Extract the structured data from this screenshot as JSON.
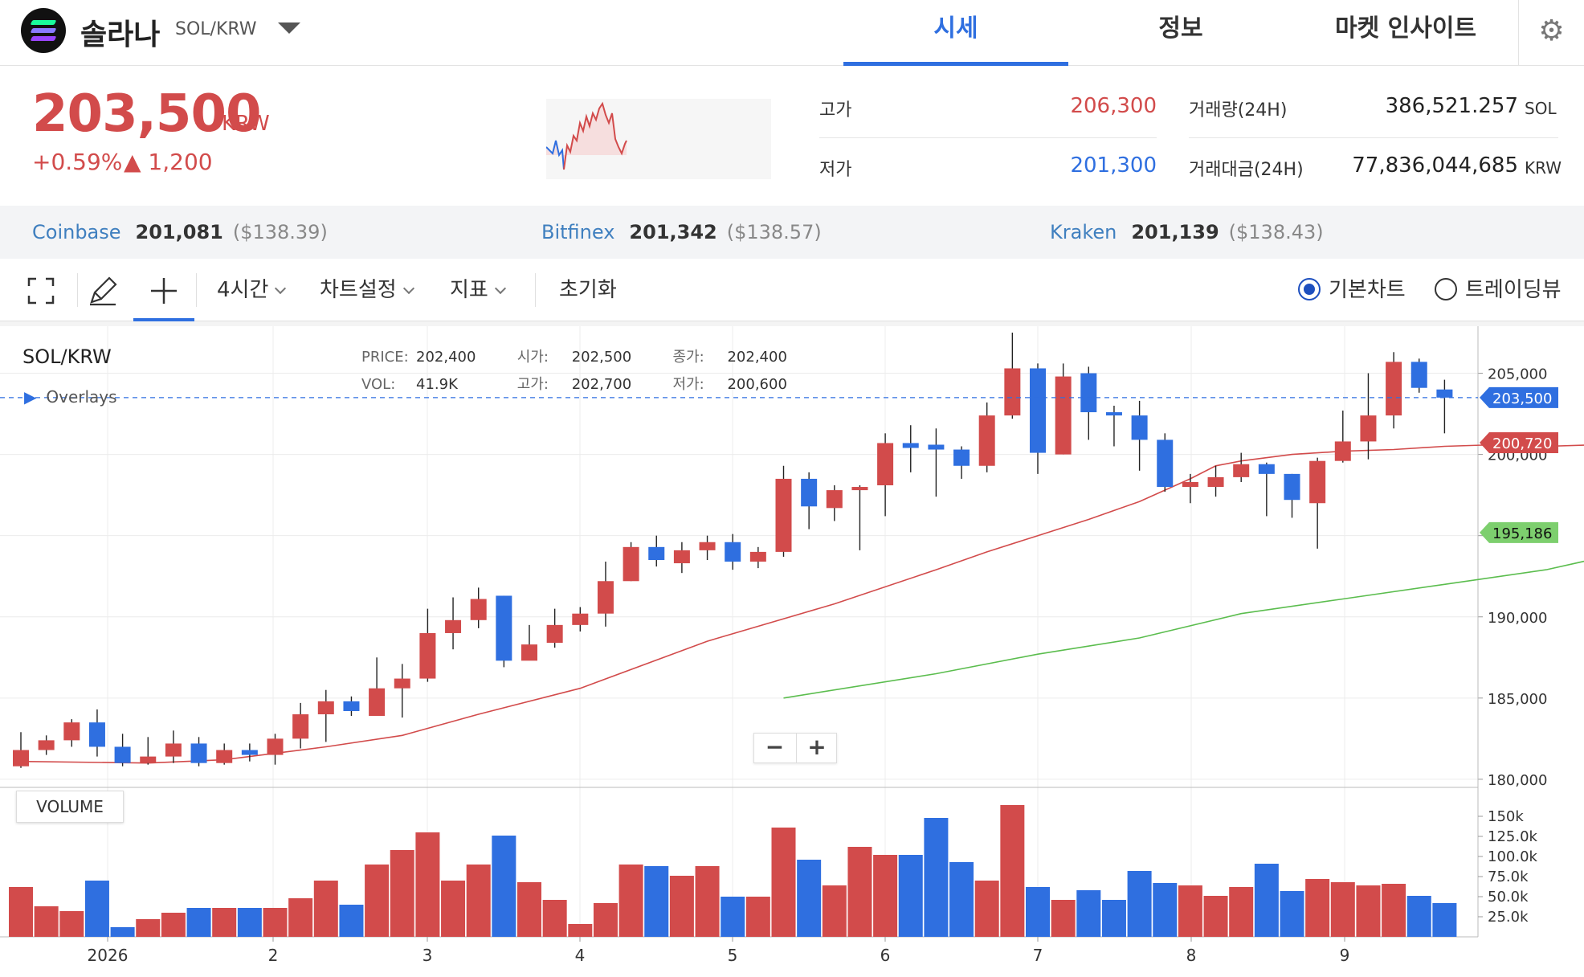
{
  "header": {
    "coin_name": "솔라나",
    "pair": "SOL/KRW",
    "tabs": [
      {
        "label": "시세"
      },
      {
        "label": "정보"
      },
      {
        "label": "마켓 인사이트"
      }
    ],
    "settings_icon": "gear-icon"
  },
  "summary": {
    "price": "203,500",
    "unit": "KRW",
    "change_rate": "+0.59%",
    "change_amount": "▲ 1,200",
    "high_label": "고가",
    "high": "206,300",
    "low_label": "저가",
    "low": "201,300",
    "volume_label": "거래량(24H)",
    "volume": "386,521.257",
    "volume_unit": "SOL",
    "amount_label": "거래대금(24H)",
    "amount": "77,836,044,685",
    "amount_unit": "KRW"
  },
  "exchanges": [
    {
      "name": "Coinbase",
      "price": "201,081",
      "usd": "($138.39)"
    },
    {
      "name": "Bitfinex",
      "price": "201,342",
      "usd": "($138.57)"
    },
    {
      "name": "Kraken",
      "price": "201,139",
      "usd": "($138.43)"
    }
  ],
  "toolbar": {
    "interval": "4시간",
    "chart_settings": "차트설정",
    "indicators": "지표",
    "reset": "초기화",
    "basic_chart": "기본차트",
    "tradingview": "트레이딩뷰",
    "basic_selected": true
  },
  "chart": {
    "title": "SOL/KRW",
    "overlays": "Overlays",
    "legend": {
      "price_label": "PRICE:",
      "price": "202,400",
      "open_label": "시가:",
      "open": "202,500",
      "close_label": "종가:",
      "close": "202,400",
      "vol_label": "VOL:",
      "vol": "41.9K",
      "high_label": "고가:",
      "high": "202,700",
      "low_label": "저가:",
      "low": "200,600"
    },
    "volume_label": "VOLUME"
  },
  "chart_data": {
    "type": "candlestick",
    "x_ticks": [
      "2026",
      "2",
      "3",
      "4",
      "5",
      "6",
      "7",
      "8",
      "9"
    ],
    "y_ticks": [
      {
        "v": 180000,
        "label": "180,000"
      },
      {
        "v": 185000,
        "label": "185,000"
      },
      {
        "v": 190000,
        "label": "190,000"
      },
      {
        "v": 195000,
        "label": "195,000"
      },
      {
        "v": 200000,
        "label": "200,000"
      },
      {
        "v": 205000,
        "label": "205,000"
      }
    ],
    "ylim": [
      179500,
      207500
    ],
    "current_price": {
      "value": 203500,
      "label": "203,500"
    },
    "ma_short_last": {
      "value": 200720,
      "label": "200,720"
    },
    "ma_long_last": {
      "value": 195186,
      "label": "195,186"
    },
    "vol_ticks": [
      {
        "v": 25000,
        "label": "25.0k"
      },
      {
        "v": 50000,
        "label": "50.0k"
      },
      {
        "v": 75000,
        "label": "75.0k"
      },
      {
        "v": 100000,
        "label": "100.0k"
      },
      {
        "v": 125000,
        "label": "125.0k"
      },
      {
        "v": 150000,
        "label": "150k"
      }
    ],
    "candles": [
      [
        180800,
        181800,
        182900,
        180700,
        62
      ],
      [
        181800,
        182400,
        182700,
        181500,
        38
      ],
      [
        182400,
        183500,
        183700,
        182000,
        32
      ],
      [
        183500,
        182000,
        184300,
        181400,
        70
      ],
      [
        182000,
        181000,
        182800,
        180800,
        12
      ],
      [
        181000,
        181400,
        182600,
        180900,
        22
      ],
      [
        181400,
        182200,
        183000,
        181000,
        30
      ],
      [
        182200,
        181000,
        182600,
        180800,
        36
      ],
      [
        181000,
        181800,
        182200,
        180900,
        36
      ],
      [
        181800,
        181500,
        182200,
        181100,
        36
      ],
      [
        181500,
        182500,
        182800,
        180900,
        36
      ],
      [
        182500,
        184000,
        184700,
        181900,
        48
      ],
      [
        184000,
        184800,
        185500,
        182300,
        70
      ],
      [
        184800,
        184200,
        185100,
        183900,
        40
      ],
      [
        183900,
        185600,
        187500,
        184000,
        90
      ],
      [
        185600,
        186200,
        187100,
        183800,
        108
      ],
      [
        186200,
        189000,
        190500,
        186000,
        130
      ],
      [
        189000,
        189800,
        191200,
        188000,
        70
      ],
      [
        189800,
        191100,
        191800,
        189300,
        90
      ],
      [
        191300,
        187300,
        191300,
        186900,
        126
      ],
      [
        187300,
        188300,
        189500,
        187600,
        68
      ],
      [
        188400,
        189500,
        190500,
        188100,
        46
      ],
      [
        189500,
        190200,
        190600,
        189100,
        16
      ],
      [
        190200,
        192200,
        193400,
        189400,
        42
      ],
      [
        192200,
        194300,
        194600,
        192200,
        90
      ],
      [
        194300,
        193500,
        195000,
        193100,
        88
      ],
      [
        193300,
        194100,
        194600,
        192700,
        76
      ],
      [
        194100,
        194600,
        195000,
        193500,
        88
      ],
      [
        194600,
        193400,
        195100,
        192900,
        50
      ],
      [
        193400,
        194000,
        194300,
        193000,
        50
      ],
      [
        194000,
        198500,
        199300,
        193700,
        136
      ],
      [
        198500,
        196800,
        198900,
        195400,
        96
      ],
      [
        196700,
        197800,
        198100,
        195900,
        64
      ],
      [
        197800,
        198000,
        198100,
        194100,
        112
      ],
      [
        198100,
        200700,
        201300,
        196200,
        102
      ],
      [
        200700,
        200400,
        201800,
        198900,
        102
      ],
      [
        200600,
        200300,
        201600,
        197400,
        148
      ],
      [
        200300,
        199300,
        200500,
        198500,
        93
      ],
      [
        199300,
        202400,
        203200,
        198900,
        70
      ],
      [
        202400,
        205300,
        207500,
        202200,
        164
      ],
      [
        205300,
        200100,
        205600,
        198800,
        62
      ],
      [
        200000,
        204800,
        205600,
        200000,
        46
      ],
      [
        205000,
        202600,
        205400,
        200900,
        58
      ],
      [
        202600,
        202400,
        203000,
        200500,
        46
      ],
      [
        202400,
        200900,
        203300,
        199000,
        82
      ],
      [
        200900,
        198000,
        201300,
        197700,
        67
      ],
      [
        198000,
        198300,
        198800,
        197000,
        64
      ],
      [
        198000,
        198600,
        199300,
        197400,
        51
      ],
      [
        198600,
        199400,
        200100,
        198300,
        62
      ],
      [
        199400,
        198800,
        199500,
        196200,
        91
      ],
      [
        198800,
        197200,
        198800,
        196100,
        57
      ],
      [
        197000,
        199600,
        199800,
        194200,
        72
      ],
      [
        199600,
        200800,
        202700,
        199500,
        68
      ],
      [
        200800,
        202400,
        205000,
        199700,
        64
      ],
      [
        202400,
        205700,
        206300,
        201600,
        66
      ],
      [
        205700,
        204100,
        205900,
        203800,
        51
      ],
      [
        204000,
        203500,
        204600,
        201300,
        42
      ]
    ],
    "ma_short": [
      [
        0,
        181100
      ],
      [
        5,
        181000
      ],
      [
        8,
        181200
      ],
      [
        12,
        182000
      ],
      [
        15,
        182700
      ],
      [
        18,
        184000
      ],
      [
        22,
        185600
      ],
      [
        27,
        188500
      ],
      [
        32,
        190800
      ],
      [
        36,
        192900
      ],
      [
        38,
        194000
      ],
      [
        40,
        195000
      ],
      [
        42,
        196000
      ],
      [
        44,
        197100
      ],
      [
        46,
        198500
      ],
      [
        47,
        199300
      ],
      [
        48,
        199600
      ],
      [
        50,
        200000
      ],
      [
        52,
        200200
      ],
      [
        54,
        200300
      ],
      [
        56,
        200500
      ],
      [
        58,
        200600
      ],
      [
        60,
        200500
      ],
      [
        62,
        200600
      ],
      [
        64,
        200800
      ],
      [
        66,
        200720
      ]
    ],
    "ma_long": [
      [
        30,
        185000
      ],
      [
        36,
        186500
      ],
      [
        40,
        187700
      ],
      [
        44,
        188700
      ],
      [
        48,
        190200
      ],
      [
        52,
        191100
      ],
      [
        56,
        192000
      ],
      [
        60,
        192900
      ],
      [
        62,
        193600
      ],
      [
        64,
        194400
      ],
      [
        66,
        195186
      ]
    ]
  }
}
